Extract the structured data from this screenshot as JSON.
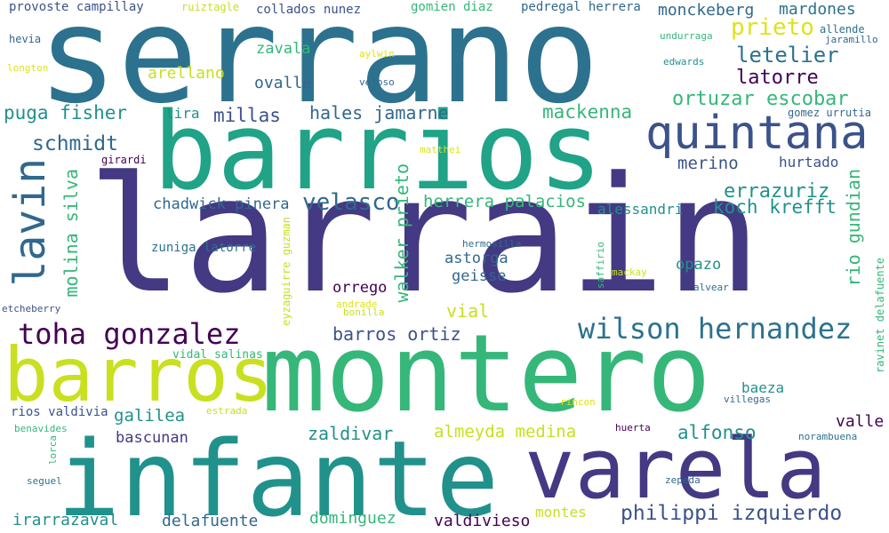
{
  "palette": {
    "purple_dark": "#440154",
    "indigo": "#443983",
    "blue": "#31688e",
    "teal": "#21918c",
    "green": "#35b779",
    "lime": "#90d743",
    "yellow": "#c8e020",
    "pale_yellow": "#dde318"
  },
  "words": [
    {
      "text": "serrano",
      "color": "#2c728e"
    },
    {
      "text": "barrios",
      "color": "#20a386"
    },
    {
      "text": "quintana",
      "color": "#3b528b"
    },
    {
      "text": "larrain",
      "color": "#443983"
    },
    {
      "text": "lavin",
      "color": "#31688e"
    },
    {
      "text": "barros",
      "color": "#c8e020"
    },
    {
      "text": "montero",
      "color": "#35b779"
    },
    {
      "text": "infante",
      "color": "#21918c"
    },
    {
      "text": "varela",
      "color": "#443983"
    },
    {
      "text": "toha gonzalez",
      "color": "#440154"
    },
    {
      "text": "wilson hernandez",
      "color": "#2c728e"
    },
    {
      "text": "philippi izquierdo",
      "color": "#3b528b"
    },
    {
      "text": "provoste campillay",
      "color": "#3b528b"
    },
    {
      "text": "ruiztagle",
      "color": "#c8e020"
    },
    {
      "text": "collados nunez",
      "color": "#3b528b"
    },
    {
      "text": "gomien diaz",
      "color": "#35b779"
    },
    {
      "text": "pedregal herrera",
      "color": "#31688e"
    },
    {
      "text": "monckeberg",
      "color": "#31688e"
    },
    {
      "text": "mardones",
      "color": "#2c728e"
    },
    {
      "text": "hevia",
      "color": "#31688e"
    },
    {
      "text": "allende",
      "color": "#2c728e"
    },
    {
      "text": "jaramillo",
      "color": "#31688e"
    },
    {
      "text": "undurraga",
      "color": "#35b779"
    },
    {
      "text": "prieto",
      "color": "#dde318"
    },
    {
      "text": "zavala",
      "color": "#35b779"
    },
    {
      "text": "aylwin",
      "color": "#dde318"
    },
    {
      "text": "longton",
      "color": "#dde318"
    },
    {
      "text": "edwards",
      "color": "#21918c"
    },
    {
      "text": "letelier",
      "color": "#2c728e"
    },
    {
      "text": "arellano",
      "color": "#c8e020"
    },
    {
      "text": "ovalle",
      "color": "#31688e"
    },
    {
      "text": "veloso",
      "color": "#31688e"
    },
    {
      "text": "latorre",
      "color": "#440154"
    },
    {
      "text": "ortuzar escobar",
      "color": "#35b779"
    },
    {
      "text": "puga fisher",
      "color": "#21918c"
    },
    {
      "text": "lira",
      "color": "#21918c"
    },
    {
      "text": "millas",
      "color": "#3b528b"
    },
    {
      "text": "hales jamarne",
      "color": "#31688e"
    },
    {
      "text": "mackenna",
      "color": "#35b779"
    },
    {
      "text": "gomez urrutia",
      "color": "#31688e"
    },
    {
      "text": "schmidt",
      "color": "#31688e"
    },
    {
      "text": "matthei",
      "color": "#dde318"
    },
    {
      "text": "girardi",
      "color": "#440154"
    },
    {
      "text": "merino",
      "color": "#3b528b"
    },
    {
      "text": "hurtado",
      "color": "#3b528b"
    },
    {
      "text": "errazuriz",
      "color": "#21918c"
    },
    {
      "text": "rio gundian",
      "color": "#35b779"
    },
    {
      "text": "molina silva",
      "color": "#35b779"
    },
    {
      "text": "chadwick pinera",
      "color": "#31688e"
    },
    {
      "text": "velasco",
      "color": "#31688e"
    },
    {
      "text": "herrera palacios",
      "color": "#35b779"
    },
    {
      "text": "koch krefft",
      "color": "#21918c"
    },
    {
      "text": "alessandri",
      "color": "#21918c"
    },
    {
      "text": "walker prieto",
      "color": "#35b779"
    },
    {
      "text": "eyzaguirre guzman",
      "color": "#c8e020"
    },
    {
      "text": "zuniga latorre",
      "color": "#2c728e"
    },
    {
      "text": "hermosilla",
      "color": "#31688e"
    },
    {
      "text": "saffirio",
      "color": "#35b779"
    },
    {
      "text": "astorga",
      "color": "#31688e"
    },
    {
      "text": "opazo",
      "color": "#21918c"
    },
    {
      "text": "mackay",
      "color": "#c8e020"
    },
    {
      "text": "geisse",
      "color": "#31688e"
    },
    {
      "text": "alvear",
      "color": "#2c728e"
    },
    {
      "text": "ravinet delafuente",
      "color": "#35b779"
    },
    {
      "text": "orrego",
      "color": "#440154"
    },
    {
      "text": "etcheberry",
      "color": "#3b528b"
    },
    {
      "text": "andrade",
      "color": "#dde318"
    },
    {
      "text": "bonilla",
      "color": "#c8e020"
    },
    {
      "text": "vial",
      "color": "#c8e020"
    },
    {
      "text": "barros ortiz",
      "color": "#3b528b"
    },
    {
      "text": "vidal salinas",
      "color": "#35b779"
    },
    {
      "text": "baeza",
      "color": "#21918c"
    },
    {
      "text": "rios valdivia",
      "color": "#3b528b"
    },
    {
      "text": "galilea",
      "color": "#21918c"
    },
    {
      "text": "estrada",
      "color": "#c8e020"
    },
    {
      "text": "rincon",
      "color": "#dde318"
    },
    {
      "text": "villegas",
      "color": "#31688e"
    },
    {
      "text": "valle",
      "color": "#440154"
    },
    {
      "text": "benavides",
      "color": "#35b779"
    },
    {
      "text": "bascunan",
      "color": "#443983"
    },
    {
      "text": "zaldivar",
      "color": "#21918c"
    },
    {
      "text": "almeyda medina",
      "color": "#c8e020"
    },
    {
      "text": "huerta",
      "color": "#440154"
    },
    {
      "text": "alfonso",
      "color": "#21918c"
    },
    {
      "text": "norambuena",
      "color": "#2c728e"
    },
    {
      "text": "lorca",
      "color": "#35b779"
    },
    {
      "text": "seguel",
      "color": "#2c728e"
    },
    {
      "text": "zepeda",
      "color": "#31688e"
    },
    {
      "text": "irarrazaval",
      "color": "#21918c"
    },
    {
      "text": "delafuente",
      "color": "#31688e"
    },
    {
      "text": "dominguez",
      "color": "#35b779"
    },
    {
      "text": "valdivieso",
      "color": "#440154"
    },
    {
      "text": "montes",
      "color": "#c8e020"
    }
  ]
}
